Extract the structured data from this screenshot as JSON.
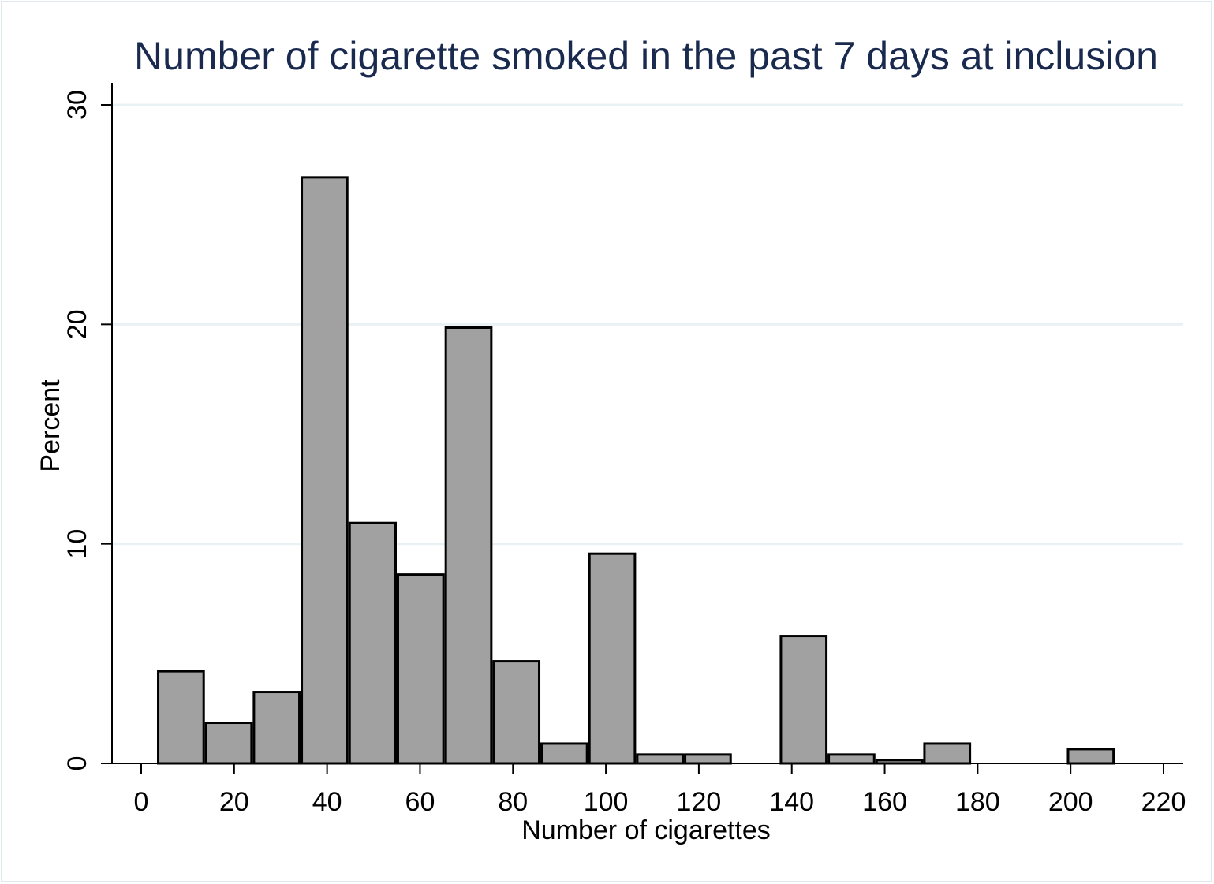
{
  "chart_data": {
    "type": "bar",
    "title": "Number of cigarette smoked in the past 7 days at inclusion",
    "xlabel": "Number of cigarettes",
    "ylabel": "Percent",
    "xlim": [
      -9,
      222
    ],
    "ylim": [
      0,
      30.5
    ],
    "xticks": [
      0,
      20,
      40,
      60,
      80,
      100,
      120,
      140,
      160,
      180,
      200,
      220
    ],
    "yticks": [
      0,
      10,
      20,
      30
    ],
    "grid": "horizontal",
    "colors": {
      "bar_fill": "#a1a1a1",
      "bar_edge": "#000000",
      "grid": "#e9f1f4",
      "title": "#1a2a4f"
    },
    "bins": [
      {
        "start": 3.4,
        "end": 13.7,
        "value": 4.2
      },
      {
        "start": 13.7,
        "end": 24.0,
        "value": 1.85
      },
      {
        "start": 24.0,
        "end": 34.3,
        "value": 3.25
      },
      {
        "start": 34.3,
        "end": 44.6,
        "value": 26.7
      },
      {
        "start": 44.6,
        "end": 55.0,
        "value": 10.95
      },
      {
        "start": 55.0,
        "end": 65.3,
        "value": 8.6
      },
      {
        "start": 65.3,
        "end": 75.6,
        "value": 19.85
      },
      {
        "start": 75.6,
        "end": 85.9,
        "value": 4.65
      },
      {
        "start": 85.9,
        "end": 96.2,
        "value": 0.9
      },
      {
        "start": 96.2,
        "end": 106.5,
        "value": 9.55
      },
      {
        "start": 106.5,
        "end": 116.8,
        "value": 0.4
      },
      {
        "start": 116.8,
        "end": 127.1,
        "value": 0.4
      },
      {
        "start": 127.1,
        "end": 137.4,
        "value": 0
      },
      {
        "start": 137.4,
        "end": 147.7,
        "value": 5.8
      },
      {
        "start": 147.7,
        "end": 158.0,
        "value": 0.4
      },
      {
        "start": 158.0,
        "end": 168.3,
        "value": 0.15
      },
      {
        "start": 168.3,
        "end": 178.6,
        "value": 0.9
      },
      {
        "start": 178.6,
        "end": 188.9,
        "value": 0
      },
      {
        "start": 188.9,
        "end": 199.2,
        "value": 0
      },
      {
        "start": 199.2,
        "end": 209.5,
        "value": 0.65
      }
    ]
  }
}
